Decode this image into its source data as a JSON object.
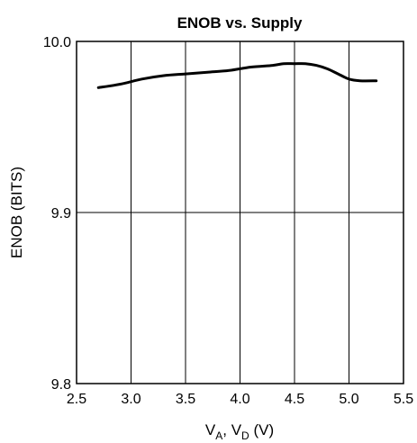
{
  "chart_data": {
    "type": "line",
    "title": "ENOB vs. Supply",
    "ylabel": "ENOB (BITS)",
    "xlabel": {
      "parts": [
        {
          "text": "V",
          "sub": false
        },
        {
          "text": "A",
          "sub": true
        },
        {
          "text": ", V",
          "sub": false
        },
        {
          "text": "D",
          "sub": true
        },
        {
          "text": " (V)",
          "sub": false
        }
      ]
    },
    "xlim": [
      2.5,
      5.5
    ],
    "ylim": [
      9.8,
      10.0
    ],
    "xticks": [
      "2.5",
      "3.0",
      "3.5",
      "4.0",
      "4.5",
      "5.0",
      "5.5"
    ],
    "yticks": [
      "9.8",
      "9.9",
      "10.0"
    ],
    "grid": true,
    "series": [
      {
        "x": [
          2.7,
          2.9,
          3.1,
          3.3,
          3.5,
          3.7,
          3.9,
          4.1,
          4.3,
          4.4,
          4.5,
          4.6,
          4.7,
          4.8,
          4.9,
          5.0,
          5.1,
          5.25
        ],
        "y": [
          9.973,
          9.975,
          9.978,
          9.98,
          9.981,
          9.982,
          9.983,
          9.985,
          9.986,
          9.987,
          9.987,
          9.987,
          9.986,
          9.984,
          9.981,
          9.978,
          9.977,
          9.977
        ],
        "color": "#000000"
      }
    ]
  }
}
